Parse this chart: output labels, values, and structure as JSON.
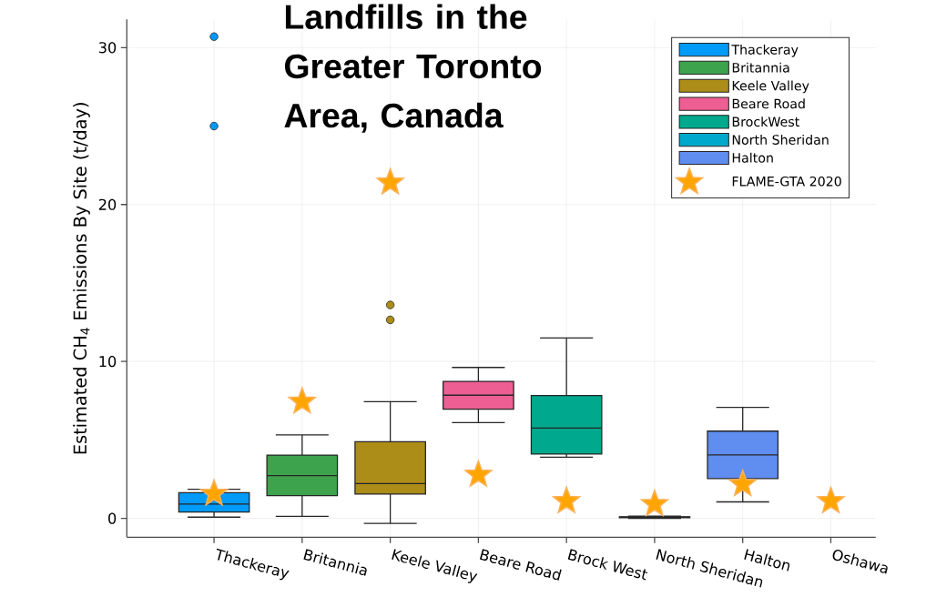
{
  "chart_data": {
    "type": "box",
    "title": "Landfills in the Greater Toronto Area, Canada",
    "ylabel": "Estimated CH$_{4}$ Emissions By Site (t/day)",
    "categories": [
      "Thackeray",
      "Britannia",
      "Keele Valley",
      "Beare Road",
      "Brock West",
      "North Sheridan",
      "Halton",
      "Oshawa"
    ],
    "ylim": [
      -1.2,
      31.8
    ],
    "yticks": [
      0,
      10,
      20,
      30
    ],
    "grid": true,
    "legend": "top right",
    "series": [
      {
        "name": "Thackeray",
        "color": "#009af9",
        "boxes": [
          {
            "low": 0.08,
            "q1": 0.41,
            "median": 0.91,
            "q3": 1.64,
            "high": 1.85,
            "outliers": [
              30.7,
              25.0
            ]
          },
          null,
          null,
          null,
          null,
          null,
          null,
          null
        ]
      },
      {
        "name": "Britannia",
        "color": "#3da44d",
        "boxes": [
          null,
          {
            "low": 0.13,
            "q1": 1.45,
            "median": 2.72,
            "q3": 4.03,
            "high": 5.32
          },
          null,
          null,
          null,
          null,
          null,
          null
        ]
      },
      {
        "name": "Keele Valley",
        "color": "#ac8d18",
        "boxes": [
          null,
          null,
          {
            "low": -0.32,
            "q1": 1.55,
            "median": 2.22,
            "q3": 4.89,
            "high": 7.44,
            "outliers": [
              13.6,
              12.65
            ]
          },
          null,
          null,
          null,
          null,
          null
        ]
      },
      {
        "name": "Beare Road",
        "color": "#ed5e93",
        "boxes": [
          null,
          null,
          null,
          {
            "low": 6.1,
            "q1": 6.96,
            "median": 7.85,
            "q3": 8.73,
            "high": 9.62
          },
          null,
          null,
          null,
          null
        ]
      },
      {
        "name": "BrockWest",
        "color": "#00a98d",
        "boxes": [
          null,
          null,
          null,
          null,
          {
            "low": 3.9,
            "q1": 4.1,
            "median": 5.76,
            "q3": 7.83,
            "high": 11.5
          },
          null,
          null,
          null
        ]
      },
      {
        "name": "North Sheridan",
        "color": "#00a8cb",
        "boxes": [
          null,
          null,
          null,
          null,
          null,
          {
            "low": 0.0,
            "q1": 0.05,
            "median": 0.08,
            "q3": 0.1,
            "high": 0.15
          },
          null,
          null
        ]
      },
      {
        "name": "Halton",
        "color": "#5f8df0",
        "boxes": [
          null,
          null,
          null,
          null,
          null,
          null,
          {
            "low": 1.05,
            "q1": 2.54,
            "median": 4.05,
            "q3": 5.56,
            "high": 7.07
          },
          null
        ]
      },
      {
        "name": "FLAME-GTA 2020",
        "type": "scatter",
        "marker": "star",
        "color": "#ffa500",
        "x": [
          "Thackeray",
          "Britannia",
          "Keele Valley",
          "Beare Road",
          "Brock West",
          "North Sheridan",
          "Halton",
          "Oshawa"
        ],
        "values": [
          1.57,
          7.44,
          21.4,
          2.78,
          1.1,
          0.91,
          2.18,
          1.1
        ]
      }
    ]
  }
}
